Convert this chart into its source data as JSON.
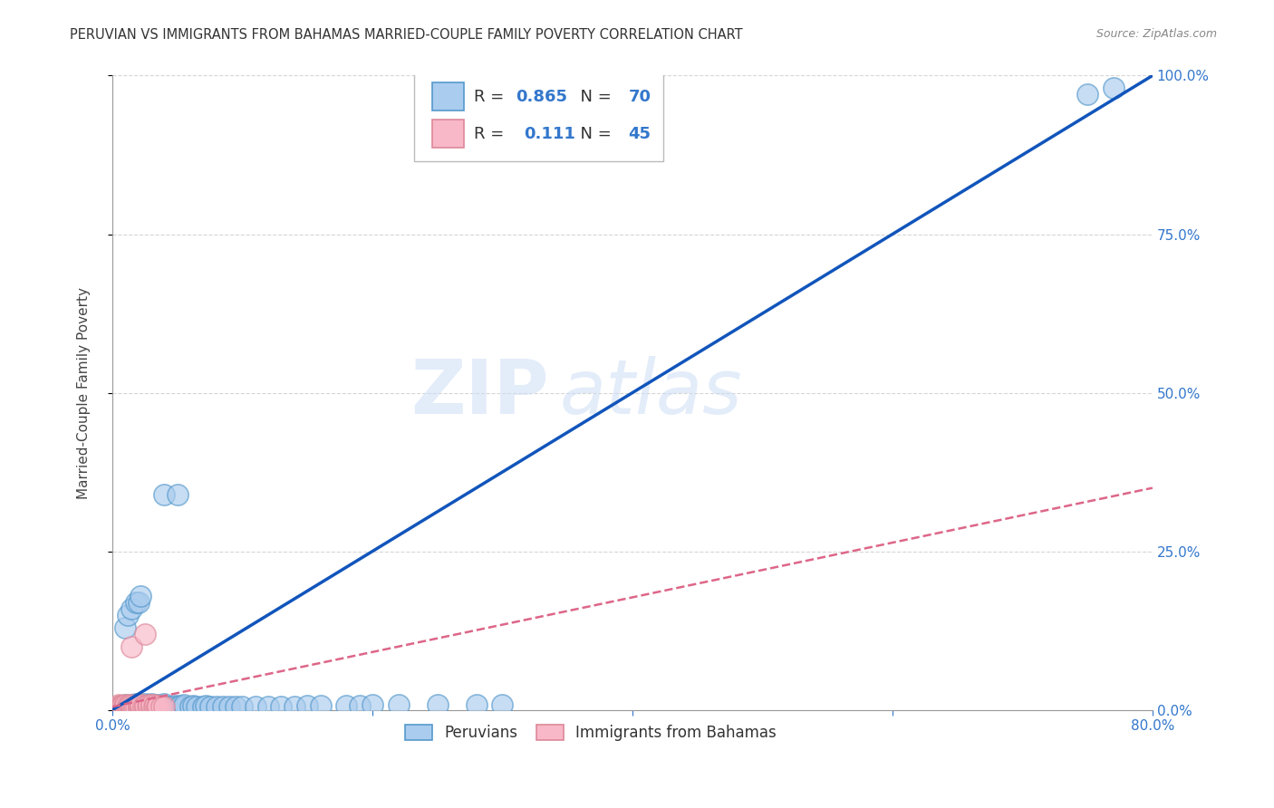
{
  "title": "PERUVIAN VS IMMIGRANTS FROM BAHAMAS MARRIED-COUPLE FAMILY POVERTY CORRELATION CHART",
  "source": "Source: ZipAtlas.com",
  "ylabel": "Married-Couple Family Poverty",
  "xlim": [
    0.0,
    0.8
  ],
  "ylim": [
    0.0,
    1.0
  ],
  "peruvian_color": "#aaccee",
  "peruvian_edge": "#5599cc",
  "bahamas_color": "#f8b8c8",
  "bahamas_edge": "#dd8899",
  "peruvian_line_color": "#1155bb",
  "bahamas_line_color": "#dd6688",
  "legend_R1": "0.865",
  "legend_N1": "70",
  "legend_R2": "0.111",
  "legend_N2": "45",
  "watermark_zip": "ZIP",
  "watermark_atlas": "atlas",
  "background_color": "#ffffff",
  "grid_color": "#cccccc",
  "blue_line_x": [
    0.0,
    0.8
  ],
  "blue_line_y": [
    0.0,
    1.0
  ],
  "pink_line_x": [
    0.0,
    0.8
  ],
  "pink_line_y": [
    0.005,
    0.35
  ],
  "peruvian_x": [
    0.005,
    0.007,
    0.008,
    0.01,
    0.01,
    0.012,
    0.013,
    0.015,
    0.015,
    0.016,
    0.018,
    0.018,
    0.02,
    0.02,
    0.02,
    0.022,
    0.022,
    0.025,
    0.025,
    0.025,
    0.03,
    0.03,
    0.03,
    0.032,
    0.035,
    0.035,
    0.04,
    0.04,
    0.04,
    0.042,
    0.045,
    0.048,
    0.05,
    0.052,
    0.055,
    0.055,
    0.06,
    0.062,
    0.065,
    0.07,
    0.072,
    0.075,
    0.08,
    0.085,
    0.09,
    0.095,
    0.1,
    0.11,
    0.12,
    0.13,
    0.14,
    0.15,
    0.16,
    0.18,
    0.19,
    0.2,
    0.22,
    0.25,
    0.28,
    0.3,
    0.01,
    0.012,
    0.015,
    0.018,
    0.02,
    0.022,
    0.04,
    0.05,
    0.75,
    0.77
  ],
  "peruvian_y": [
    0.004,
    0.005,
    0.006,
    0.005,
    0.008,
    0.006,
    0.007,
    0.005,
    0.008,
    0.006,
    0.005,
    0.009,
    0.005,
    0.007,
    0.009,
    0.006,
    0.008,
    0.005,
    0.007,
    0.01,
    0.005,
    0.007,
    0.009,
    0.006,
    0.005,
    0.008,
    0.005,
    0.007,
    0.009,
    0.006,
    0.005,
    0.007,
    0.005,
    0.007,
    0.005,
    0.008,
    0.005,
    0.007,
    0.006,
    0.005,
    0.007,
    0.006,
    0.005,
    0.006,
    0.005,
    0.006,
    0.005,
    0.006,
    0.006,
    0.006,
    0.006,
    0.007,
    0.007,
    0.007,
    0.007,
    0.008,
    0.008,
    0.008,
    0.008,
    0.008,
    0.13,
    0.15,
    0.16,
    0.17,
    0.17,
    0.18,
    0.34,
    0.34,
    0.97,
    0.98
  ],
  "bahamas_x": [
    0.003,
    0.004,
    0.004,
    0.005,
    0.005,
    0.005,
    0.006,
    0.006,
    0.007,
    0.007,
    0.008,
    0.008,
    0.009,
    0.01,
    0.01,
    0.01,
    0.012,
    0.012,
    0.013,
    0.013,
    0.015,
    0.015,
    0.015,
    0.016,
    0.017,
    0.018,
    0.02,
    0.02,
    0.02,
    0.022,
    0.022,
    0.024,
    0.025,
    0.025,
    0.025,
    0.027,
    0.028,
    0.03,
    0.03,
    0.032,
    0.033,
    0.034,
    0.035,
    0.038,
    0.04
  ],
  "bahamas_y": [
    0.003,
    0.004,
    0.006,
    0.003,
    0.005,
    0.008,
    0.004,
    0.007,
    0.004,
    0.007,
    0.004,
    0.007,
    0.005,
    0.003,
    0.005,
    0.008,
    0.004,
    0.007,
    0.005,
    0.008,
    0.004,
    0.007,
    0.1,
    0.004,
    0.006,
    0.004,
    0.004,
    0.006,
    0.009,
    0.005,
    0.008,
    0.005,
    0.004,
    0.007,
    0.12,
    0.006,
    0.008,
    0.005,
    0.008,
    0.006,
    0.008,
    0.005,
    0.007,
    0.005,
    0.006
  ]
}
